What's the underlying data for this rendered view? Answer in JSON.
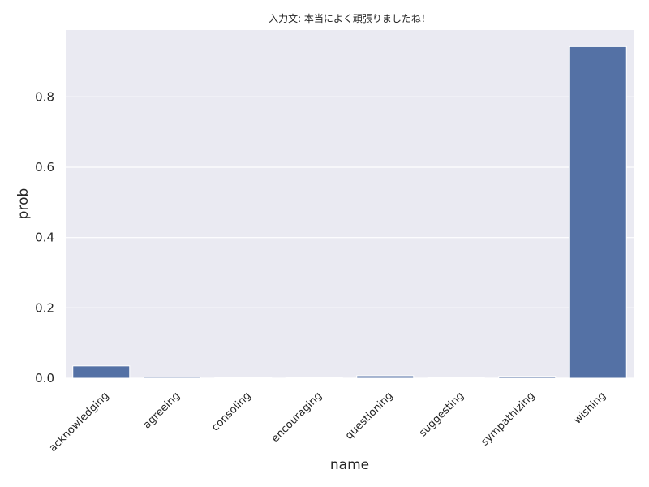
{
  "chart_data": {
    "type": "bar",
    "title": "入力文: 本当によく頑張りましたね！",
    "xlabel": "name",
    "ylabel": "prob",
    "categories": [
      "acknowledging",
      "agreeing",
      "consoling",
      "encouraging",
      "questioning",
      "suggesting",
      "sympathizing",
      "wishing"
    ],
    "values": [
      0.035,
      0.003,
      0.002,
      0.002,
      0.007,
      0.002,
      0.005,
      0.943
    ],
    "ylim": [
      0,
      0.99
    ],
    "yticks": [
      0.0,
      0.2,
      0.4,
      0.6,
      0.8
    ],
    "ytick_labels": [
      "0.0",
      "0.2",
      "0.4",
      "0.6",
      "0.8"
    ],
    "grid": true,
    "bar_color": "#5471a5",
    "background_color": "#eaeaf2"
  }
}
